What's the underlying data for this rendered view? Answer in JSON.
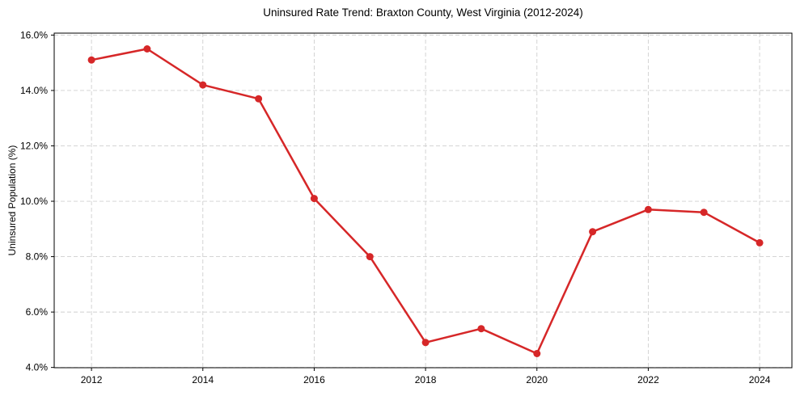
{
  "chart_data": {
    "type": "line",
    "title": "Uninsured Rate Trend: Braxton County, West Virginia (2012-2024)",
    "xlabel": "",
    "ylabel": "Uninsured Population (%)",
    "x": [
      2012,
      2013,
      2014,
      2015,
      2016,
      2017,
      2018,
      2019,
      2020,
      2021,
      2022,
      2023,
      2024
    ],
    "series": [
      {
        "name": "Uninsured rate",
        "color": "#d62728",
        "marker": "circle",
        "values": [
          15.1,
          15.5,
          14.2,
          13.7,
          10.1,
          8.0,
          4.9,
          5.4,
          4.5,
          8.9,
          9.7,
          9.6,
          8.5
        ]
      }
    ],
    "xticks": {
      "values": [
        2012,
        2014,
        2016,
        2018,
        2020,
        2022,
        2024
      ],
      "labels": [
        "2012",
        "2014",
        "2016",
        "2018",
        "2020",
        "2022",
        "2024"
      ]
    },
    "yticks": {
      "values": [
        4,
        6,
        8,
        10,
        12,
        14,
        16
      ],
      "labels": [
        "4.0%",
        "6.0%",
        "8.0%",
        "10.0%",
        "12.0%",
        "14.0%",
        "16.0%"
      ]
    },
    "xlim": [
      2011.33,
      2024.58
    ],
    "ylim": [
      3.99,
      16.07
    ],
    "grid": true,
    "grid_style": "dashed",
    "grid_color": "#cfcfcf",
    "spine_color": "#000000",
    "legend": null
  }
}
